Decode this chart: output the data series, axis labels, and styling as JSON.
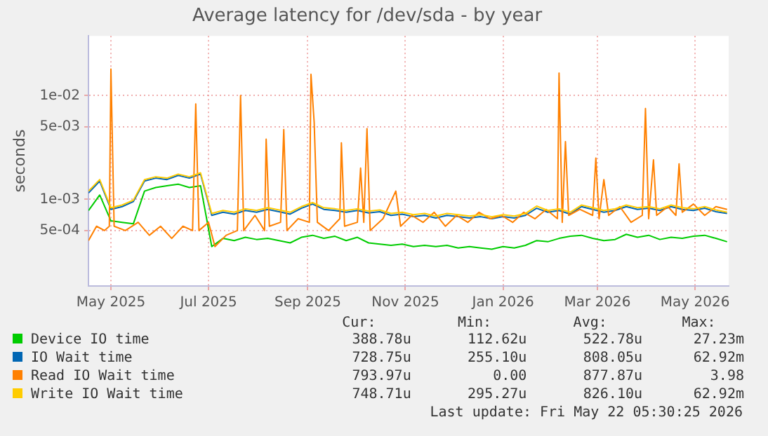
{
  "chart_data": {
    "type": "line",
    "title": "Average latency for /dev/sda - by year",
    "ylabel": "seconds",
    "log": "y",
    "grid": true,
    "legend": "bottom",
    "marker": "none",
    "line_style": "solid",
    "xlim": [
      "2025-04-17",
      "2026-05-22"
    ],
    "xticks": [
      {
        "value": "2025-05-01",
        "label": "May 2025"
      },
      {
        "value": "2025-07-01",
        "label": "Jul 2025"
      },
      {
        "value": "2025-09-01",
        "label": "Sep 2025"
      },
      {
        "value": "2025-11-01",
        "label": "Nov 2025"
      },
      {
        "value": "2026-01-01",
        "label": "Jan 2026"
      },
      {
        "value": "2026-03-01",
        "label": "Mar 2026"
      },
      {
        "value": "2026-05-01",
        "label": "May 2026"
      }
    ],
    "ylim": [
      0.000146,
      0.0376
    ],
    "yticks": [
      {
        "value": 0.0005,
        "label": "5e-04"
      },
      {
        "value": 0.001,
        "label": "1e-03"
      },
      {
        "value": 0.005,
        "label": "5e-03"
      },
      {
        "value": 0.01,
        "label": "1e-02"
      }
    ],
    "x": [
      "2025-04-17",
      "2025-04-24",
      "2025-05-01",
      "2025-05-08",
      "2025-05-15",
      "2025-05-22",
      "2025-05-29",
      "2025-06-05",
      "2025-06-12",
      "2025-06-19",
      "2025-06-26",
      "2025-07-03",
      "2025-07-10",
      "2025-07-17",
      "2025-07-24",
      "2025-07-31",
      "2025-08-07",
      "2025-08-14",
      "2025-08-21",
      "2025-08-28",
      "2025-09-04",
      "2025-09-11",
      "2025-09-18",
      "2025-09-25",
      "2025-10-02",
      "2025-10-09",
      "2025-10-16",
      "2025-10-23",
      "2025-10-30",
      "2025-11-06",
      "2025-11-13",
      "2025-11-20",
      "2025-11-27",
      "2025-12-04",
      "2025-12-11",
      "2025-12-18",
      "2025-12-25",
      "2026-01-01",
      "2026-01-08",
      "2026-01-15",
      "2026-01-22",
      "2026-01-29",
      "2026-02-05",
      "2026-02-12",
      "2026-02-19",
      "2026-02-26",
      "2026-03-05",
      "2026-03-12",
      "2026-03-19",
      "2026-03-26",
      "2026-04-02",
      "2026-04-09",
      "2026-04-16",
      "2026-04-23",
      "2026-04-30",
      "2026-05-07",
      "2026-05-14",
      "2026-05-21"
    ],
    "series": [
      {
        "name": "Device IO time",
        "color": "#00cc00",
        "values": [
          0.00078,
          0.0011,
          0.00062,
          0.0006,
          0.00058,
          0.0012,
          0.0013,
          0.00135,
          0.0014,
          0.0013,
          0.00135,
          0.00035,
          0.00042,
          0.0004,
          0.00043,
          0.00041,
          0.00042,
          0.0004,
          0.00038,
          0.00043,
          0.00045,
          0.00042,
          0.00044,
          0.0004,
          0.00043,
          0.00038,
          0.00037,
          0.00036,
          0.00037,
          0.00035,
          0.00036,
          0.00035,
          0.00036,
          0.00034,
          0.00035,
          0.00034,
          0.00033,
          0.00035,
          0.00034,
          0.00036,
          0.0004,
          0.00039,
          0.00042,
          0.00044,
          0.00045,
          0.00042,
          0.0004,
          0.00041,
          0.00046,
          0.00043,
          0.00045,
          0.00041,
          0.00043,
          0.00042,
          0.00044,
          0.00045,
          0.00042,
          0.00039
        ]
      },
      {
        "name": "IO Wait time",
        "color": "#0066b3",
        "values": [
          0.00115,
          0.0015,
          0.0008,
          0.00085,
          0.00095,
          0.0015,
          0.0016,
          0.00155,
          0.0017,
          0.0016,
          0.00175,
          0.0007,
          0.00075,
          0.00072,
          0.00078,
          0.00075,
          0.0008,
          0.00076,
          0.00072,
          0.00082,
          0.0009,
          0.0008,
          0.00078,
          0.00075,
          0.00078,
          0.00074,
          0.00076,
          0.0007,
          0.00072,
          0.00068,
          0.0007,
          0.00066,
          0.0007,
          0.00068,
          0.00066,
          0.00068,
          0.00065,
          0.00068,
          0.00066,
          0.0007,
          0.00082,
          0.00075,
          0.00078,
          0.00072,
          0.00085,
          0.0008,
          0.00075,
          0.00078,
          0.00085,
          0.0008,
          0.00082,
          0.00078,
          0.00085,
          0.0008,
          0.00078,
          0.00082,
          0.00076,
          0.00073
        ]
      },
      {
        "name": "Read IO Wait time",
        "color": "#ff8000",
        "x": [
          "2025-04-17",
          "2025-04-22",
          "2025-04-27",
          "2025-04-30",
          "2025-05-01",
          "2025-05-03",
          "2025-05-10",
          "2025-05-18",
          "2025-05-25",
          "2025-06-01",
          "2025-06-08",
          "2025-06-15",
          "2025-06-21",
          "2025-06-23",
          "2025-06-25",
          "2025-07-01",
          "2025-07-05",
          "2025-07-12",
          "2025-07-19",
          "2025-07-21",
          "2025-07-23",
          "2025-07-30",
          "2025-08-05",
          "2025-08-06",
          "2025-08-08",
          "2025-08-15",
          "2025-08-17",
          "2025-08-19",
          "2025-08-26",
          "2025-09-02",
          "2025-09-03",
          "2025-09-05",
          "2025-09-07",
          "2025-09-14",
          "2025-09-21",
          "2025-09-22",
          "2025-09-24",
          "2025-10-02",
          "2025-10-04",
          "2025-10-06",
          "2025-10-08",
          "2025-10-10",
          "2025-10-18",
          "2025-10-26",
          "2025-10-29",
          "2025-11-05",
          "2025-11-12",
          "2025-11-19",
          "2025-11-26",
          "2025-12-03",
          "2025-12-10",
          "2025-12-17",
          "2025-12-24",
          "2025-12-31",
          "2026-01-07",
          "2026-01-14",
          "2026-01-21",
          "2026-01-28",
          "2026-02-04",
          "2026-02-05",
          "2026-02-07",
          "2026-02-09",
          "2026-02-11",
          "2026-02-18",
          "2026-02-26",
          "2026-02-28",
          "2026-03-02",
          "2026-03-05",
          "2026-03-08",
          "2026-03-15",
          "2026-03-22",
          "2026-03-29",
          "2026-03-31",
          "2026-04-02",
          "2026-04-05",
          "2026-04-07",
          "2026-04-14",
          "2026-04-19",
          "2026-04-21",
          "2026-04-23",
          "2026-04-30",
          "2026-05-07",
          "2026-05-14",
          "2026-05-21"
        ],
        "values": [
          0.0004,
          0.00055,
          0.0005,
          0.00055,
          0.018,
          0.00055,
          0.0005,
          0.0006,
          0.00045,
          0.00055,
          0.00042,
          0.00055,
          0.0005,
          0.0083,
          0.0005,
          0.0006,
          0.00035,
          0.00045,
          0.0005,
          0.01,
          0.0005,
          0.0007,
          0.0005,
          0.0038,
          0.00055,
          0.0006,
          0.0047,
          0.0005,
          0.00065,
          0.0006,
          0.016,
          0.0055,
          0.0006,
          0.0005,
          0.00065,
          0.0035,
          0.00055,
          0.0006,
          0.002,
          0.0006,
          0.0048,
          0.0005,
          0.00065,
          0.0012,
          0.00055,
          0.0007,
          0.0006,
          0.00075,
          0.00055,
          0.0007,
          0.0006,
          0.00075,
          0.00065,
          0.0007,
          0.0006,
          0.00075,
          0.00065,
          0.0008,
          0.00065,
          0.0165,
          0.0006,
          0.0036,
          0.0007,
          0.0008,
          0.0007,
          0.0025,
          0.00065,
          0.00155,
          0.0007,
          0.00085,
          0.0006,
          0.0007,
          0.0075,
          0.00065,
          0.0024,
          0.0007,
          0.00085,
          0.0007,
          0.0022,
          0.00075,
          0.0009,
          0.0007,
          0.00085,
          0.0008
        ]
      },
      {
        "name": "Write IO Wait time",
        "color": "#ffcc00",
        "values": [
          0.0012,
          0.00155,
          0.00083,
          0.00088,
          0.00098,
          0.00155,
          0.00165,
          0.0016,
          0.00175,
          0.00165,
          0.0018,
          0.00073,
          0.00078,
          0.00075,
          0.00081,
          0.00078,
          0.00083,
          0.00079,
          0.00075,
          0.00085,
          0.00093,
          0.00083,
          0.00081,
          0.00078,
          0.00081,
          0.00077,
          0.00079,
          0.00073,
          0.00075,
          0.00071,
          0.00073,
          0.00069,
          0.00073,
          0.00071,
          0.00069,
          0.00071,
          0.00068,
          0.00071,
          0.00069,
          0.00073,
          0.00086,
          0.00078,
          0.00081,
          0.00075,
          0.00088,
          0.00083,
          0.00078,
          0.00081,
          0.00088,
          0.00083,
          0.00085,
          0.00081,
          0.00088,
          0.00083,
          0.00081,
          0.00085,
          0.00079,
          0.00075
        ]
      }
    ],
    "annotations": [
      "Cur:",
      "Min:",
      "Avg:",
      "Max:",
      "388.78u",
      "112.62u",
      "522.78u",
      "27.23m",
      "728.75u",
      "255.10u",
      "808.05u",
      "62.92m",
      "793.97u",
      "0.00",
      "877.87u",
      "3.98",
      "748.71u",
      "295.27u",
      "826.10u",
      "62.92m",
      "Last update: Fri May 22 05:30:25 2026"
    ]
  }
}
